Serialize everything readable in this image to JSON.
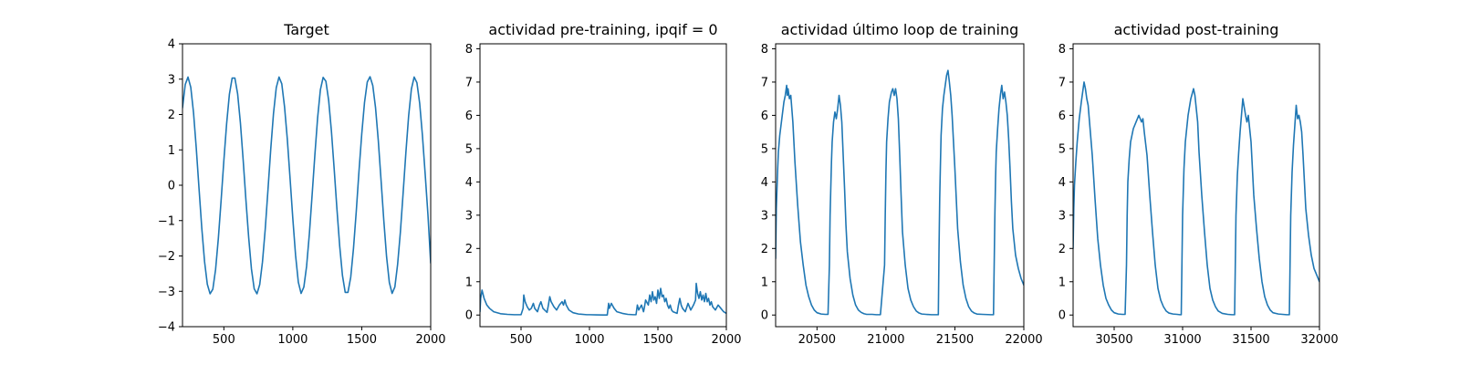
{
  "chart_data": [
    {
      "type": "line",
      "title": "Target",
      "xlim": [
        200,
        2000
      ],
      "ylim": [
        -4,
        4
      ],
      "xticks": [
        500,
        1000,
        1500,
        2000
      ],
      "yticks": [
        -4,
        -3,
        -2,
        -1,
        0,
        1,
        2,
        3,
        4
      ],
      "ytick_labels": [
        "−4",
        "−3",
        "−2",
        "−1",
        "0",
        "1",
        "2",
        "3",
        "4"
      ],
      "color": "#1f77b4",
      "x": [
        200,
        220,
        240,
        260,
        280,
        300,
        320,
        340,
        360,
        380,
        400,
        420,
        440,
        460,
        480,
        500,
        520,
        540,
        560,
        580,
        600,
        620,
        640,
        660,
        680,
        700,
        720,
        740,
        760,
        780,
        800,
        820,
        840,
        860,
        880,
        900,
        920,
        940,
        960,
        980,
        1000,
        1020,
        1040,
        1060,
        1080,
        1100,
        1120,
        1140,
        1160,
        1180,
        1200,
        1220,
        1240,
        1260,
        1280,
        1300,
        1320,
        1340,
        1360,
        1380,
        1400,
        1420,
        1440,
        1460,
        1480,
        1500,
        1520,
        1540,
        1560,
        1580,
        1600,
        1620,
        1640,
        1660,
        1680,
        1700,
        1720,
        1740,
        1760,
        1780,
        1800,
        1820,
        1840,
        1860,
        1880,
        1900,
        1920,
        1940,
        1960,
        1980,
        2000
      ],
      "y": [
        2.19,
        2.85,
        3.06,
        2.77,
        2.05,
        1.04,
        -0.1,
        -1.22,
        -2.16,
        -2.8,
        -3.07,
        -2.94,
        -2.38,
        -1.5,
        -0.43,
        0.7,
        1.74,
        2.57,
        3.03,
        3.03,
        2.58,
        1.76,
        0.71,
        -0.42,
        -1.48,
        -2.37,
        -2.93,
        -3.07,
        -2.81,
        -2.17,
        -1.24,
        -0.12,
        1.02,
        2.03,
        2.76,
        3.06,
        2.87,
        2.22,
        1.31,
        0.2,
        -0.94,
        -1.98,
        -2.74,
        -3.06,
        -2.88,
        -2.29,
        -1.38,
        -0.28,
        0.86,
        1.91,
        2.7,
        3.05,
        2.94,
        2.4,
        1.53,
        0.46,
        -0.67,
        -1.72,
        -2.55,
        -3.03,
        -3.03,
        -2.6,
        -1.79,
        -0.75,
        0.4,
        1.45,
        2.34,
        2.92,
        3.07,
        2.82,
        2.19,
        1.26,
        0.14,
        -1.0,
        -2.02,
        -2.75,
        -3.06,
        -2.88,
        -2.24,
        -1.33,
        -0.22,
        0.92,
        1.96,
        2.72,
        3.06,
        2.9,
        2.32,
        1.41,
        0.31,
        -0.83,
        -2.2
      ]
    },
    {
      "type": "line",
      "title": "actividad pre-training, ipqif = 0",
      "xlim": [
        200,
        2000
      ],
      "ylim": [
        -0.35,
        8.15
      ],
      "xticks": [
        500,
        1000,
        1500,
        2000
      ],
      "yticks": [
        0,
        1,
        2,
        3,
        4,
        5,
        6,
        7,
        8
      ],
      "ytick_labels": [
        "0",
        "1",
        "2",
        "3",
        "4",
        "5",
        "6",
        "7",
        "8"
      ],
      "color": "#1f77b4",
      "x": [
        200,
        205,
        215,
        230,
        250,
        270,
        300,
        350,
        400,
        450,
        500,
        515,
        520,
        530,
        545,
        560,
        575,
        590,
        600,
        620,
        635,
        645,
        660,
        690,
        700,
        710,
        720,
        740,
        760,
        780,
        800,
        810,
        820,
        830,
        850,
        880,
        920,
        980,
        1000,
        1050,
        1100,
        1130,
        1140,
        1145,
        1160,
        1180,
        1200,
        1240,
        1280,
        1320,
        1340,
        1350,
        1360,
        1380,
        1395,
        1400,
        1410,
        1430,
        1440,
        1450,
        1460,
        1470,
        1480,
        1490,
        1500,
        1510,
        1520,
        1530,
        1540,
        1550,
        1560,
        1570,
        1580,
        1590,
        1600,
        1610,
        1640,
        1650,
        1660,
        1670,
        1680,
        1700,
        1720,
        1740,
        1760,
        1775,
        1780,
        1790,
        1800,
        1810,
        1820,
        1830,
        1840,
        1850,
        1860,
        1870,
        1880,
        1890,
        1900,
        1920,
        1940,
        1960,
        1980,
        2000
      ],
      "y": [
        0.1,
        0.5,
        0.75,
        0.5,
        0.3,
        0.2,
        0.1,
        0.04,
        0.02,
        0.01,
        0.01,
        0.2,
        0.6,
        0.4,
        0.25,
        0.15,
        0.2,
        0.35,
        0.2,
        0.1,
        0.3,
        0.4,
        0.2,
        0.08,
        0.3,
        0.55,
        0.4,
        0.25,
        0.15,
        0.3,
        0.4,
        0.3,
        0.45,
        0.3,
        0.15,
        0.07,
        0.03,
        0.01,
        0.01,
        0.005,
        0.002,
        0.002,
        0.35,
        0.2,
        0.35,
        0.2,
        0.1,
        0.05,
        0.02,
        0.01,
        0.01,
        0.3,
        0.15,
        0.3,
        0.1,
        0.2,
        0.45,
        0.3,
        0.6,
        0.4,
        0.7,
        0.45,
        0.55,
        0.35,
        0.75,
        0.5,
        0.8,
        0.55,
        0.6,
        0.4,
        0.5,
        0.3,
        0.2,
        0.3,
        0.15,
        0.1,
        0.05,
        0.3,
        0.5,
        0.3,
        0.2,
        0.1,
        0.35,
        0.15,
        0.3,
        0.45,
        0.95,
        0.65,
        0.5,
        0.7,
        0.45,
        0.6,
        0.4,
        0.65,
        0.4,
        0.5,
        0.3,
        0.4,
        0.25,
        0.15,
        0.3,
        0.2,
        0.1,
        0.05
      ]
    },
    {
      "type": "line",
      "title": "actividad último loop de training",
      "xlim": [
        20200,
        22000
      ],
      "ylim": [
        -0.35,
        8.15
      ],
      "xticks": [
        20500,
        21000,
        21500,
        22000
      ],
      "yticks": [
        0,
        1,
        2,
        3,
        4,
        5,
        6,
        7,
        8
      ],
      "ytick_labels": [
        "0",
        "1",
        "2",
        "3",
        "4",
        "5",
        "6",
        "7",
        "8"
      ],
      "color": "#1f77b4",
      "x": [
        20200,
        20205,
        20210,
        20215,
        20220,
        20230,
        20245,
        20260,
        20270,
        20280,
        20285,
        20290,
        20300,
        20310,
        20325,
        20340,
        20360,
        20380,
        20400,
        20420,
        20440,
        20460,
        20480,
        20500,
        20530,
        20560,
        20580,
        20590,
        20595,
        20600,
        20605,
        20610,
        20620,
        20630,
        20640,
        20650,
        20660,
        20670,
        20680,
        20690,
        20700,
        20710,
        20720,
        20740,
        20760,
        20780,
        20800,
        20820,
        20840,
        20860,
        20880,
        20900,
        20930,
        20960,
        20990,
        20995,
        21000,
        21005,
        21015,
        21025,
        21040,
        21050,
        21060,
        21070,
        21080,
        21090,
        21100,
        21110,
        21120,
        21140,
        21160,
        21180,
        21200,
        21220,
        21240,
        21260,
        21290,
        21330,
        21360,
        21380,
        21385,
        21390,
        21395,
        21400,
        21410,
        21420,
        21430,
        21440,
        21450,
        21460,
        21470,
        21480,
        21490,
        21500,
        21510,
        21520,
        21540,
        21560,
        21580,
        21600,
        21620,
        21640,
        21660,
        21700,
        21760,
        21780,
        21785,
        21790,
        21795,
        21800,
        21810,
        21820,
        21830,
        21840,
        21850,
        21860,
        21870,
        21880,
        21890,
        21900,
        21910,
        21920,
        21940,
        21960,
        21980,
        22000
      ],
      "y": [
        1.7,
        3.2,
        3.8,
        4.4,
        4.9,
        5.4,
        5.9,
        6.4,
        6.6,
        6.9,
        6.6,
        6.8,
        6.5,
        6.6,
        5.8,
        4.6,
        3.3,
        2.2,
        1.5,
        0.9,
        0.55,
        0.3,
        0.15,
        0.07,
        0.03,
        0.02,
        0.02,
        1.5,
        3.0,
        3.8,
        4.6,
        5.2,
        5.8,
        6.1,
        5.9,
        6.2,
        6.6,
        6.3,
        5.8,
        4.8,
        3.8,
        2.7,
        1.9,
        1.1,
        0.6,
        0.3,
        0.15,
        0.08,
        0.04,
        0.02,
        0.02,
        0.02,
        0.01,
        0.01,
        1.5,
        3.0,
        4.3,
        5.2,
        5.9,
        6.4,
        6.7,
        6.8,
        6.6,
        6.8,
        6.5,
        5.9,
        4.8,
        3.6,
        2.5,
        1.5,
        0.8,
        0.45,
        0.25,
        0.12,
        0.06,
        0.03,
        0.02,
        0.01,
        0.01,
        0.01,
        2.0,
        3.5,
        4.5,
        5.4,
        6.2,
        6.6,
        6.9,
        7.2,
        7.35,
        7.0,
        6.6,
        6.0,
        5.2,
        4.4,
        3.5,
        2.6,
        1.6,
        0.9,
        0.5,
        0.25,
        0.12,
        0.06,
        0.03,
        0.02,
        0.01,
        0.01,
        1.5,
        3.0,
        4.1,
        4.9,
        5.6,
        6.2,
        6.6,
        6.9,
        6.5,
        6.7,
        6.4,
        6.0,
        5.3,
        4.4,
        3.4,
        2.6,
        1.8,
        1.4,
        1.1,
        0.9
      ]
    },
    {
      "type": "line",
      "title": "actividad post-training",
      "xlim": [
        30200,
        32000
      ],
      "ylim": [
        -0.35,
        8.15
      ],
      "xticks": [
        30500,
        31000,
        31500,
        32000
      ],
      "yticks": [
        0,
        1,
        2,
        3,
        4,
        5,
        6,
        7,
        8
      ],
      "ytick_labels": [
        "0",
        "1",
        "2",
        "3",
        "4",
        "5",
        "6",
        "7",
        "8"
      ],
      "color": "#1f77b4",
      "x": [
        30200,
        30205,
        30210,
        30220,
        30230,
        30245,
        30260,
        30270,
        30280,
        30290,
        30300,
        30310,
        30320,
        30340,
        30360,
        30380,
        30400,
        30420,
        30440,
        30460,
        30480,
        30500,
        30530,
        30560,
        30580,
        30590,
        30595,
        30600,
        30610,
        30620,
        30640,
        30660,
        30680,
        30700,
        30710,
        30720,
        30740,
        30760,
        30780,
        30800,
        30820,
        30840,
        30860,
        30880,
        30900,
        30930,
        30960,
        30980,
        30990,
        30995,
        31000,
        31010,
        31020,
        31040,
        31060,
        31080,
        31090,
        31100,
        31110,
        31120,
        31140,
        31160,
        31180,
        31200,
        31220,
        31240,
        31260,
        31290,
        31330,
        31360,
        31380,
        31385,
        31390,
        31400,
        31410,
        31420,
        31440,
        31460,
        31470,
        31480,
        31490,
        31500,
        31510,
        31520,
        31540,
        31560,
        31580,
        31600,
        31620,
        31640,
        31660,
        31700,
        31760,
        31780,
        31785,
        31790,
        31800,
        31810,
        31820,
        31830,
        31840,
        31850,
        31860,
        31870,
        31880,
        31890,
        31900,
        31920,
        31940,
        31960,
        31980,
        32000
      ],
      "y": [
        2.0,
        3.2,
        3.9,
        4.6,
        5.2,
        5.9,
        6.4,
        6.7,
        7.0,
        6.8,
        6.5,
        6.3,
        5.8,
        4.8,
        3.5,
        2.3,
        1.5,
        0.9,
        0.5,
        0.3,
        0.15,
        0.07,
        0.03,
        0.02,
        0.02,
        1.5,
        3.0,
        4.0,
        4.7,
        5.2,
        5.6,
        5.8,
        6.0,
        5.8,
        5.9,
        5.5,
        4.8,
        3.6,
        2.5,
        1.5,
        0.8,
        0.45,
        0.25,
        0.12,
        0.06,
        0.03,
        0.02,
        0.01,
        0.01,
        1.5,
        3.0,
        4.4,
        5.2,
        6.0,
        6.5,
        6.8,
        6.6,
        6.2,
        5.8,
        4.9,
        3.6,
        2.5,
        1.5,
        0.8,
        0.45,
        0.25,
        0.12,
        0.05,
        0.02,
        0.01,
        0.01,
        1.5,
        3.0,
        4.2,
        4.9,
        5.5,
        6.5,
        6.0,
        5.8,
        6.0,
        5.6,
        5.2,
        4.4,
        3.6,
        2.6,
        1.7,
        1.0,
        0.55,
        0.3,
        0.15,
        0.07,
        0.03,
        0.01,
        0.01,
        1.5,
        3.0,
        4.3,
        5.1,
        5.7,
        6.3,
        5.9,
        6.0,
        5.8,
        5.5,
        4.8,
        4.0,
        3.2,
        2.4,
        1.8,
        1.4,
        1.2,
        1.0
      ]
    }
  ]
}
